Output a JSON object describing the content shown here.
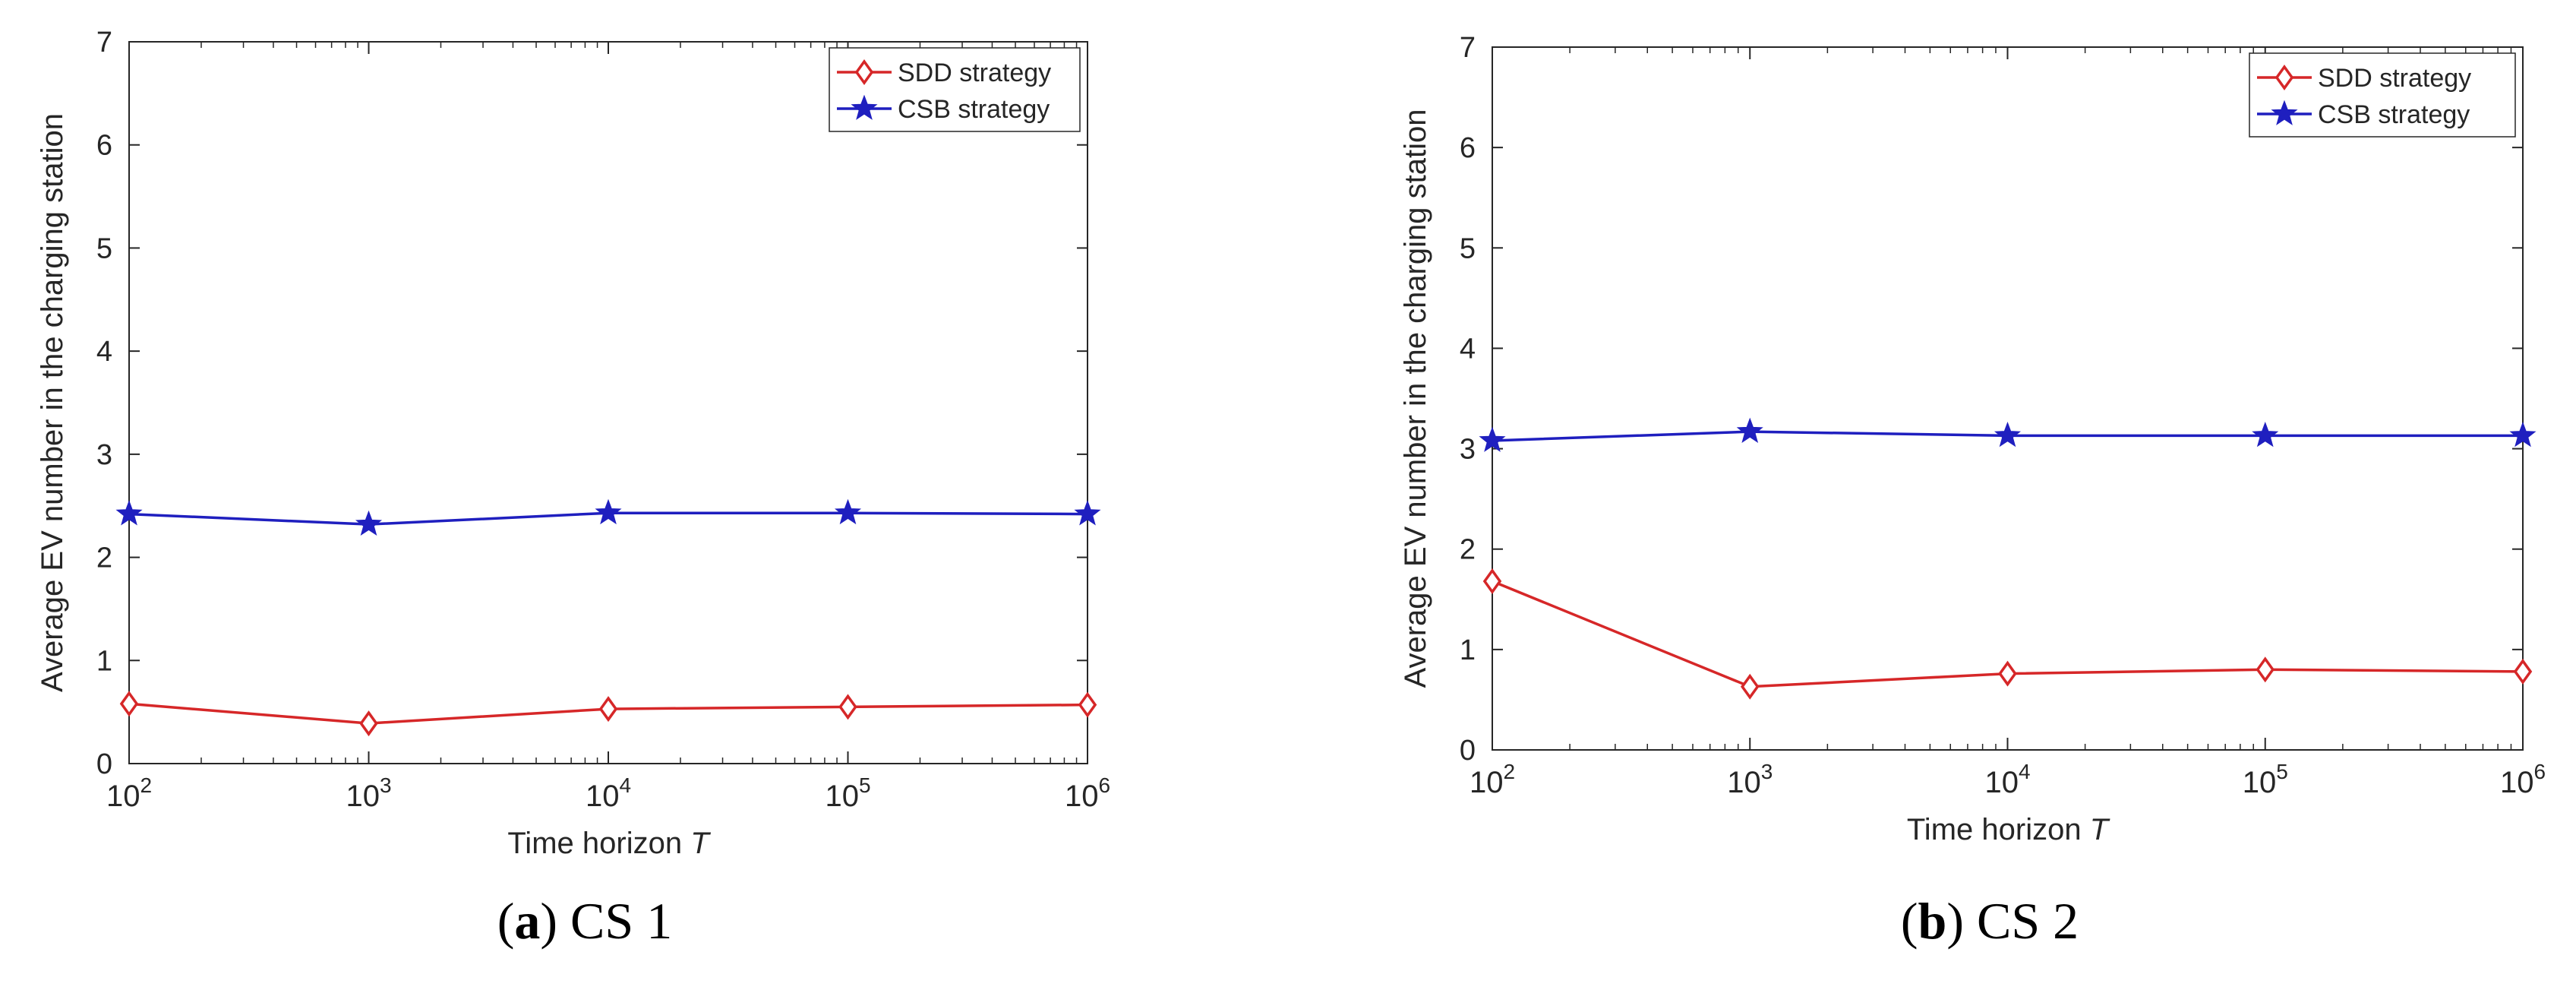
{
  "chart_data": [
    {
      "id": "a",
      "type": "line",
      "caption": {
        "label": "a",
        "open": "(",
        "close": ")",
        "text": " CS 1"
      },
      "title": "",
      "xlabel": "Time horizon",
      "xlabel_var": "T",
      "ylabel": "Average EV number in the charging station",
      "x_scale": "log",
      "categories": [
        "10^2",
        "10^3",
        "10^4",
        "10^5",
        "10^6"
      ],
      "x": [
        100,
        1000,
        10000,
        100000,
        1000000
      ],
      "x_tick_labels": [
        {
          "base": "10",
          "exp": "2"
        },
        {
          "base": "10",
          "exp": "3"
        },
        {
          "base": "10",
          "exp": "4"
        },
        {
          "base": "10",
          "exp": "5"
        },
        {
          "base": "10",
          "exp": "6"
        }
      ],
      "ylim": [
        0,
        7
      ],
      "yticks": [
        "0",
        "1",
        "2",
        "3",
        "4",
        "5",
        "6",
        "7"
      ],
      "grid": false,
      "legend_position": "top-right",
      "series": [
        {
          "name": "SDD strategy",
          "color": "#d62728",
          "marker": "diamond",
          "values": [
            0.58,
            0.39,
            0.53,
            0.55,
            0.57
          ]
        },
        {
          "name": "CSB strategy",
          "color": "#1f1fbf",
          "marker": "star",
          "values": [
            2.42,
            2.32,
            2.43,
            2.43,
            2.42
          ]
        }
      ]
    },
    {
      "id": "b",
      "type": "line",
      "caption": {
        "label": "b",
        "open": "(",
        "close": ")",
        "text": " CS 2"
      },
      "title": "",
      "xlabel": "Time horizon",
      "xlabel_var": "T",
      "ylabel": "Average EV number in the charging station",
      "x_scale": "log",
      "categories": [
        "10^2",
        "10^3",
        "10^4",
        "10^5",
        "10^6"
      ],
      "x": [
        100,
        1000,
        10000,
        100000,
        1000000
      ],
      "x_tick_labels": [
        {
          "base": "10",
          "exp": "2"
        },
        {
          "base": "10",
          "exp": "3"
        },
        {
          "base": "10",
          "exp": "4"
        },
        {
          "base": "10",
          "exp": "5"
        },
        {
          "base": "10",
          "exp": "6"
        }
      ],
      "ylim": [
        0,
        7
      ],
      "yticks": [
        "0",
        "1",
        "2",
        "3",
        "4",
        "5",
        "6",
        "7"
      ],
      "grid": false,
      "legend_position": "top-right",
      "series": [
        {
          "name": "SDD strategy",
          "color": "#d62728",
          "marker": "diamond",
          "values": [
            1.68,
            0.63,
            0.76,
            0.8,
            0.78
          ]
        },
        {
          "name": "CSB strategy",
          "color": "#1f1fbf",
          "marker": "star",
          "values": [
            3.08,
            3.17,
            3.13,
            3.13,
            3.13
          ]
        }
      ]
    }
  ]
}
